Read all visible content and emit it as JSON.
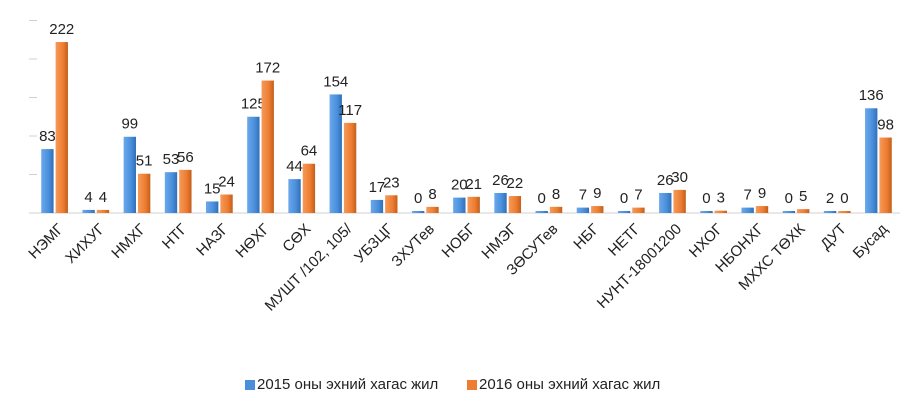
{
  "chart_data": {
    "type": "bar",
    "categories": [
      "НЭМГ",
      "ХИХУГ",
      "НМХГ",
      "НТГ",
      "НАЗГ",
      "НӨХГ",
      "СӨХ",
      "МУШТ /102, 105/",
      "УБЗЦГ",
      "ЗХУТев",
      "НОБГ",
      "НМЭГ",
      "ЗӨСУТев",
      "НБГ",
      "НЕТГ",
      "НУНТ-18001200",
      "НХОГ",
      "НБОНХГ",
      "МХХС ТӨХК",
      "ДУТ",
      "Бусад"
    ],
    "series": [
      {
        "name": "2015 оны эхний хагас жил",
        "color": "#4a8fdc",
        "values": [
          83,
          4,
          99,
          53,
          15,
          125,
          44,
          154,
          17,
          0,
          20,
          26,
          0,
          7,
          0,
          26,
          0,
          7,
          0,
          2,
          136
        ]
      },
      {
        "name": "2016 оны эхний хагас жил",
        "color": "#ed7d31",
        "values": [
          222,
          4,
          51,
          56,
          24,
          172,
          64,
          117,
          23,
          8,
          21,
          22,
          8,
          9,
          7,
          30,
          3,
          9,
          5,
          0,
          98
        ]
      }
    ],
    "ylim": [
      0,
      250
    ],
    "yticks": [
      0,
      50,
      100,
      150,
      200,
      250
    ],
    "legend": "bottom"
  }
}
